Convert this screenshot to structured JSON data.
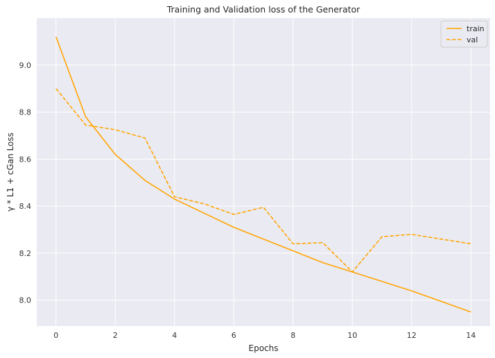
{
  "chart_data": {
    "type": "line",
    "title": "Training and Validation loss of the Generator",
    "xlabel": "Epochs",
    "ylabel": "γ * L1 + cGan Loss",
    "xlim": [
      -0.65,
      14.65
    ],
    "ylim": [
      7.89,
      9.2
    ],
    "x_ticks": [
      0,
      2,
      4,
      6,
      8,
      10,
      12,
      14
    ],
    "y_ticks": [
      8.0,
      8.2,
      8.4,
      8.6,
      8.8,
      9.0
    ],
    "grid": true,
    "legend_position": "top-right",
    "colors": {
      "background": "#eaeaf2",
      "grid": "#ffffff",
      "line": "#ffa500"
    },
    "series": [
      {
        "name": "train",
        "style": "solid",
        "x": [
          0,
          1,
          2,
          3,
          4,
          5,
          6,
          7,
          8,
          9,
          10,
          11,
          12,
          13,
          14
        ],
        "y": [
          9.12,
          8.78,
          8.62,
          8.51,
          8.43,
          8.37,
          8.31,
          8.26,
          8.21,
          8.16,
          8.12,
          8.08,
          8.04,
          7.995,
          7.95
        ]
      },
      {
        "name": "val",
        "style": "dashed",
        "x": [
          0,
          1,
          2,
          3,
          4,
          5,
          6,
          7,
          8,
          9,
          10,
          11,
          12,
          13,
          14
        ],
        "y": [
          8.9,
          8.745,
          8.725,
          8.69,
          8.44,
          8.41,
          8.365,
          8.395,
          8.24,
          8.245,
          8.12,
          8.27,
          8.28,
          8.26,
          8.24
        ]
      }
    ]
  }
}
